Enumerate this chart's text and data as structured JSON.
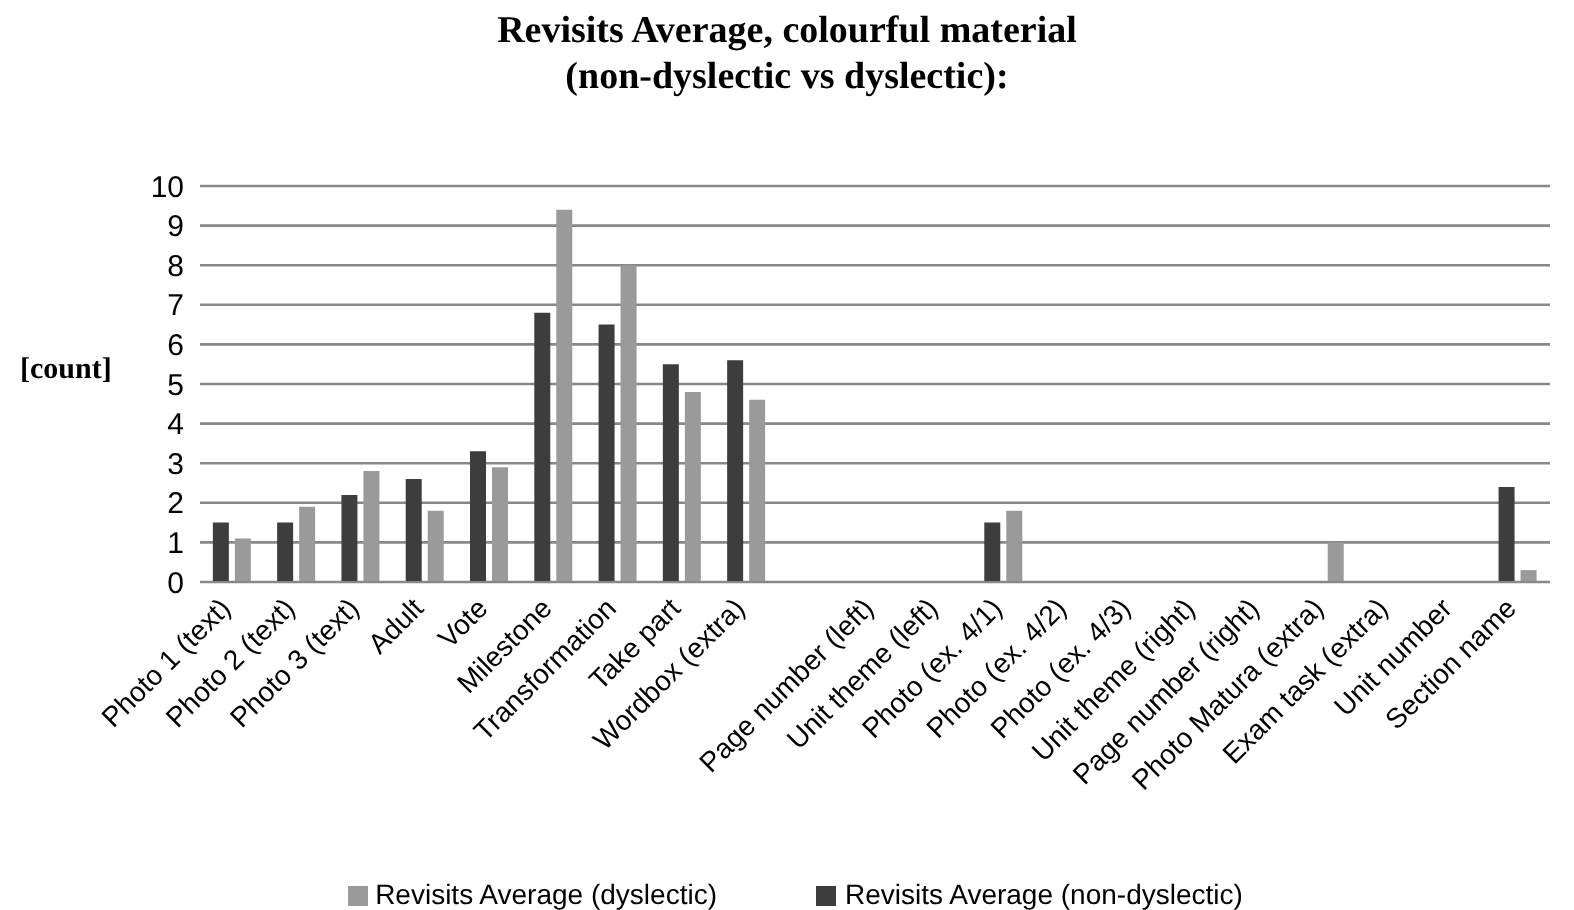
{
  "chart_data": {
    "type": "bar",
    "title": "Revisits Average, colourful material\n(non-dyslectic vs dyslectic):",
    "ylabel": "[count]",
    "categories": [
      "Photo 1 (text)",
      "Photo 2 (text)",
      "Photo 3 (text)",
      "Adult",
      "Vote",
      "Milestone",
      "Transformation",
      "Take part",
      "Wordbox (extra)",
      null,
      "Page number (left)",
      "Unit theme (left)",
      "Photo (ex. 4/1)",
      "Photo (ex. 4/2)",
      "Photo (ex. 4/3)",
      "Unit theme (right)",
      "Page number (right)",
      "Photo Matura (extra)",
      "Exam task (extra)",
      "Unit number",
      "Section name"
    ],
    "series": [
      {
        "name": "Revisits Average (non-dyslectic)",
        "color": "#3d3d3d",
        "values": [
          1.5,
          1.5,
          2.2,
          2.6,
          3.3,
          6.8,
          6.5,
          5.5,
          5.6,
          null,
          null,
          null,
          1.5,
          null,
          null,
          null,
          null,
          null,
          null,
          null,
          2.4
        ]
      },
      {
        "name": "Revisits Average (dyslectic)",
        "color": "#9a9a9a",
        "values": [
          1.1,
          1.9,
          2.8,
          1.8,
          2.9,
          9.4,
          8.0,
          4.8,
          4.6,
          null,
          null,
          null,
          1.8,
          null,
          null,
          null,
          null,
          1.0,
          null,
          null,
          0.3
        ]
      }
    ],
    "ylim": [
      0,
      10
    ],
    "yticks": [
      0,
      1,
      2,
      3,
      4,
      5,
      6,
      7,
      8,
      9,
      10
    ],
    "grid": "y",
    "legend": "bottom"
  }
}
